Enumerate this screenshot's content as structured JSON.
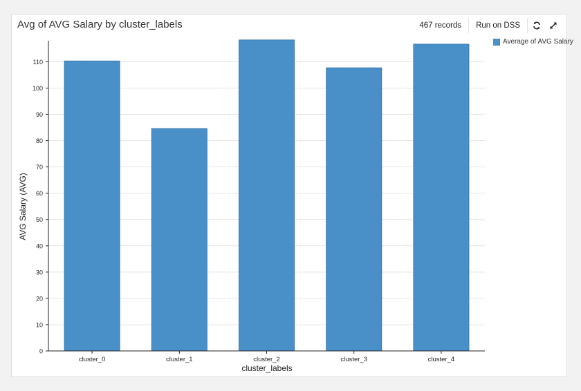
{
  "header": {
    "title": "Avg of AVG Salary by cluster_labels",
    "records": "467 records",
    "run_label": "Run on DSS",
    "refresh_icon": "refresh-icon",
    "expand_icon": "expand-icon"
  },
  "colors": {
    "bar": "#4a90c8",
    "bar_stroke": "#3a7bb0",
    "grid": "#e3e3e3",
    "axis": "#222222"
  },
  "chart_data": {
    "type": "bar",
    "title": "Avg of AVG Salary by cluster_labels",
    "xlabel": "cluster_labels",
    "ylabel": "AVG Salary (AVG)",
    "categories": [
      "cluster_0",
      "cluster_1",
      "cluster_2",
      "cluster_3",
      "cluster_4"
    ],
    "series": [
      {
        "name": "Average of AVG Salary",
        "values": [
          110.3,
          84.6,
          118.3,
          107.7,
          116.7
        ]
      }
    ],
    "ylim": [
      0,
      118
    ],
    "yticks": [
      0,
      10,
      20,
      30,
      40,
      50,
      60,
      70,
      80,
      90,
      100,
      110
    ],
    "grid": true,
    "legend_position": "top-right"
  }
}
